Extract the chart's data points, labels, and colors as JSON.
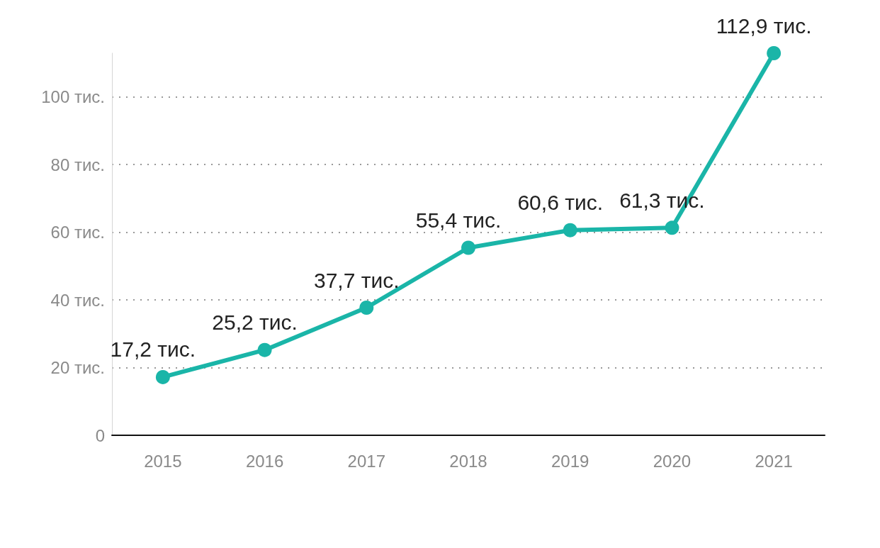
{
  "chart_data": {
    "type": "line",
    "categories": [
      "2015",
      "2016",
      "2017",
      "2018",
      "2019",
      "2020",
      "2021"
    ],
    "series": [
      {
        "color": "#1ab5a8",
        "values": [
          17.2,
          25.2,
          37.7,
          55.4,
          60.6,
          61.3,
          112.9
        ],
        "value_labels": [
          "17,2 тис.",
          "25,2 тис.",
          "37,7 тис.",
          "55,4 тис.",
          "60,6 тис.",
          "61,3 тис.",
          "112,9 тис."
        ]
      }
    ],
    "ylim": [
      0,
      112.9
    ],
    "yticks": [
      {
        "value": 0,
        "label": "0"
      },
      {
        "value": 20,
        "label": "20 тис."
      },
      {
        "value": 40,
        "label": "40 тис."
      },
      {
        "value": 60,
        "label": "60 тис."
      },
      {
        "value": 80,
        "label": "80 тис."
      },
      {
        "value": 100,
        "label": "100 тис."
      }
    ],
    "grid": "y",
    "marker": "circle",
    "line_style": "solid"
  }
}
